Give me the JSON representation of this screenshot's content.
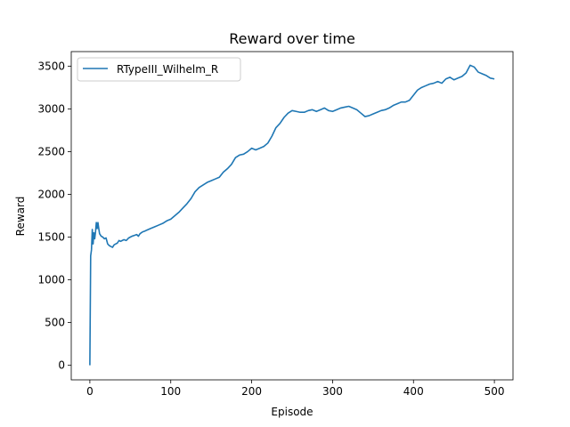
{
  "chart_data": {
    "type": "line",
    "title": "Reward over time",
    "xlabel": "Episode",
    "ylabel": "Reward",
    "xlim": [
      -23,
      523
    ],
    "ylim": [
      -170,
      3670
    ],
    "xticks": [
      0,
      100,
      200,
      300,
      400,
      500
    ],
    "yticks": [
      0,
      500,
      1000,
      1500,
      2000,
      2500,
      3000,
      3500
    ],
    "grid": false,
    "legend_position": "top-left",
    "series": [
      {
        "name": "RTypeIII_Wilhelm_R",
        "color": "#1f77b4",
        "x": [
          0,
          1,
          2,
          3,
          4,
          5,
          6,
          7,
          8,
          9,
          10,
          11,
          12,
          14,
          16,
          18,
          20,
          22,
          24,
          26,
          28,
          30,
          32,
          34,
          36,
          38,
          40,
          42,
          45,
          48,
          50,
          52,
          55,
          58,
          60,
          62,
          65,
          68,
          70,
          75,
          80,
          85,
          90,
          95,
          100,
          105,
          110,
          115,
          120,
          125,
          130,
          135,
          140,
          145,
          150,
          155,
          160,
          165,
          170,
          175,
          180,
          185,
          190,
          195,
          200,
          205,
          210,
          215,
          220,
          225,
          230,
          235,
          240,
          245,
          250,
          255,
          260,
          265,
          270,
          275,
          280,
          285,
          290,
          295,
          300,
          305,
          310,
          315,
          320,
          325,
          330,
          335,
          340,
          345,
          350,
          355,
          360,
          365,
          370,
          375,
          380,
          385,
          390,
          395,
          400,
          405,
          410,
          415,
          420,
          425,
          430,
          435,
          440,
          445,
          450,
          455,
          460,
          465,
          470,
          475,
          480,
          485,
          490,
          495,
          500
        ],
        "y": [
          0,
          1280,
          1350,
          1590,
          1420,
          1550,
          1480,
          1560,
          1670,
          1600,
          1670,
          1600,
          1540,
          1510,
          1500,
          1480,
          1490,
          1420,
          1400,
          1390,
          1380,
          1410,
          1420,
          1430,
          1460,
          1450,
          1460,
          1470,
          1460,
          1490,
          1500,
          1510,
          1520,
          1530,
          1510,
          1540,
          1560,
          1570,
          1580,
          1600,
          1620,
          1640,
          1660,
          1690,
          1710,
          1750,
          1790,
          1840,
          1890,
          1950,
          2030,
          2080,
          2110,
          2140,
          2160,
          2180,
          2200,
          2260,
          2300,
          2350,
          2430,
          2460,
          2470,
          2500,
          2540,
          2520,
          2540,
          2560,
          2600,
          2680,
          2780,
          2830,
          2900,
          2950,
          2980,
          2970,
          2960,
          2960,
          2980,
          2990,
          2970,
          2990,
          3010,
          2980,
          2970,
          2990,
          3010,
          3020,
          3030,
          3010,
          2990,
          2950,
          2910,
          2920,
          2940,
          2960,
          2980,
          2990,
          3010,
          3040,
          3060,
          3080,
          3080,
          3100,
          3160,
          3220,
          3250,
          3270,
          3290,
          3300,
          3320,
          3300,
          3350,
          3370,
          3340,
          3360,
          3380,
          3420,
          3510,
          3490,
          3430,
          3410,
          3390,
          3360,
          3350
        ]
      }
    ]
  }
}
